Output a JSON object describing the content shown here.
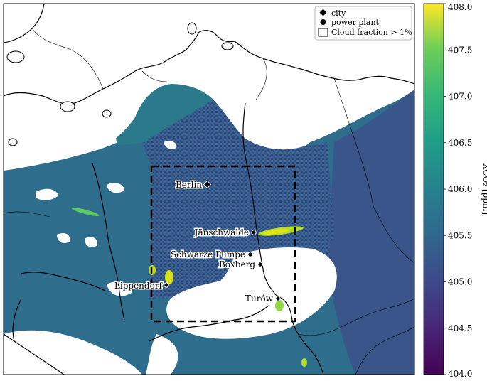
{
  "legend": {
    "items": [
      {
        "label": "city",
        "marker": "diamond"
      },
      {
        "label": "power plant",
        "marker": "circle"
      },
      {
        "label": "Cloud fraction > 1%",
        "marker": "square"
      }
    ]
  },
  "colorbar": {
    "label": "XCO₂ [ppm]",
    "range": [
      404.0,
      408.0
    ],
    "ticks": [
      "404.0",
      "404.5",
      "405.0",
      "405.5",
      "406.0",
      "406.5",
      "407.0",
      "407.5",
      "408.0"
    ],
    "colormap": "viridis"
  },
  "places": {
    "city": {
      "name": "Berlin",
      "lon": 13.4,
      "lat": 52.52
    },
    "power_plants": [
      {
        "name": "Jänschwalde",
        "lon": 14.46,
        "lat": 51.84
      },
      {
        "name": "Schwarze Pumpe",
        "lon": 14.35,
        "lat": 51.54
      },
      {
        "name": "Boxberg",
        "lon": 14.56,
        "lat": 51.42
      },
      {
        "name": "Lippendorf",
        "lon": 12.37,
        "lat": 51.18
      },
      {
        "name": "Turów",
        "lon": 14.91,
        "lat": 50.94
      }
    ]
  },
  "region_box": {
    "lon": [
      12.0,
      15.0
    ],
    "lat": [
      50.7,
      52.8
    ],
    "style": "dashed"
  },
  "colors": {
    "background_field": "#2e6e8e",
    "cloud": "#ffffff",
    "plume": "#d7e219",
    "borders": "#000000"
  }
}
